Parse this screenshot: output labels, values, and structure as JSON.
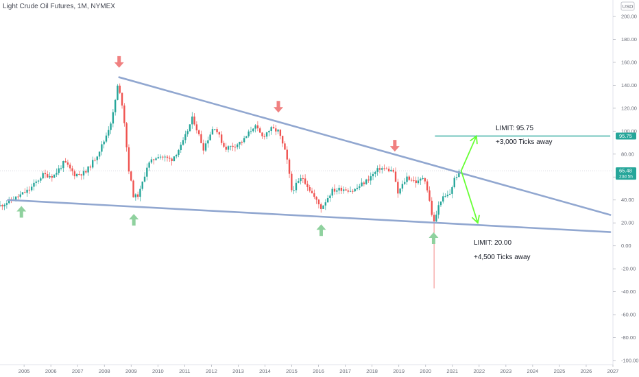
{
  "chart_title": "Light Crude Oil Futures, 1M, NYMEX",
  "currency_label": "USD",
  "price_tags": [
    {
      "value": 95.75,
      "label": "95.75",
      "sub": "",
      "color": "#26a69a"
    },
    {
      "value": 65.48,
      "label": "65.48",
      "sub": "23d 5h",
      "color": "#26a69a"
    }
  ],
  "annotations": [
    {
      "id": "upper",
      "title": "LIMIT: 95.75",
      "sub": "+3,000 Ticks away"
    },
    {
      "id": "lower",
      "title": "LIMIT: 20.00",
      "sub": "+4,500 Ticks away"
    }
  ],
  "colors": {
    "up": "#26a69a",
    "down": "#ef5350",
    "trendline": "#91a7d0",
    "limit_line": "#26a69a",
    "projection": "#66ff33",
    "arrow_up": "#8fd19e",
    "arrow_down": "#f08080"
  },
  "chart_data": {
    "type": "candlestick",
    "title": "Light Crude Oil Futures, 1M, NYMEX",
    "xlim": [
      2004.1,
      2027.0
    ],
    "ylim": [
      -100,
      200
    ],
    "x_ticks": [
      "2005",
      "2006",
      "2007",
      "2008",
      "2009",
      "2010",
      "2011",
      "2012",
      "2013",
      "2014",
      "2015",
      "2016",
      "2017",
      "2018",
      "2019",
      "2020",
      "2021",
      "2022",
      "2023",
      "2024",
      "2025",
      "2026",
      "2027"
    ],
    "y_ticks": [
      200,
      180,
      160,
      140,
      120,
      100,
      80,
      60,
      40,
      20,
      0,
      -20,
      -40,
      -60,
      -80,
      -100
    ],
    "y_tick_labels": [
      "200.00",
      "180.00",
      "160.00",
      "140.00",
      "120.00",
      "100.00",
      "80.00",
      "60.00",
      "40.00",
      "20.00",
      "0.00",
      "-20.00",
      "-40.00",
      "-60.00",
      "-80.00",
      "-100.00"
    ],
    "price_path": [
      [
        2004.1,
        35
      ],
      [
        2004.7,
        42
      ],
      [
        2005.2,
        49
      ],
      [
        2005.7,
        62
      ],
      [
        2006.1,
        61
      ],
      [
        2006.5,
        73
      ],
      [
        2006.9,
        62
      ],
      [
        2007.3,
        64
      ],
      [
        2007.7,
        78
      ],
      [
        2008.0,
        92
      ],
      [
        2008.3,
        112
      ],
      [
        2008.5,
        140
      ],
      [
        2008.7,
        120
      ],
      [
        2008.9,
        68
      ],
      [
        2009.1,
        42
      ],
      [
        2009.3,
        45
      ],
      [
        2009.6,
        70
      ],
      [
        2010.0,
        79
      ],
      [
        2010.5,
        75
      ],
      [
        2010.9,
        88
      ],
      [
        2011.3,
        112
      ],
      [
        2011.7,
        85
      ],
      [
        2012.1,
        105
      ],
      [
        2012.5,
        85
      ],
      [
        2012.9,
        88
      ],
      [
        2013.2,
        92
      ],
      [
        2013.6,
        105
      ],
      [
        2013.9,
        95
      ],
      [
        2014.2,
        102
      ],
      [
        2014.5,
        100
      ],
      [
        2014.8,
        78
      ],
      [
        2015.0,
        48
      ],
      [
        2015.4,
        60
      ],
      [
        2015.9,
        40
      ],
      [
        2016.1,
        33
      ],
      [
        2016.5,
        48
      ],
      [
        2016.9,
        50
      ],
      [
        2017.3,
        48
      ],
      [
        2017.8,
        57
      ],
      [
        2018.3,
        68
      ],
      [
        2018.8,
        65
      ],
      [
        2018.95,
        45
      ],
      [
        2019.3,
        60
      ],
      [
        2019.7,
        55
      ],
      [
        2019.95,
        61
      ],
      [
        2020.1,
        45
      ],
      [
        2020.3,
        19
      ],
      [
        2020.55,
        40
      ],
      [
        2020.9,
        45
      ],
      [
        2021.1,
        60
      ],
      [
        2021.33,
        65.48
      ]
    ],
    "candle_count": 205,
    "spike_low": {
      "x": 2020.3,
      "value": -37
    },
    "trendlines": [
      {
        "name": "upper-trendline",
        "from": [
          2008.55,
          147
        ],
        "to": [
          2026.9,
          27
        ]
      },
      {
        "name": "lower-trendline",
        "from": [
          2004.4,
          40
        ],
        "to": [
          2026.9,
          12
        ]
      }
    ],
    "horizontal_lines": [
      {
        "name": "limit-line",
        "value": 95.75,
        "from_x": 2020.35,
        "to_x": 2026.9
      },
      {
        "name": "current-price-line",
        "value": 65.48,
        "from_x": 2004.1,
        "to_x": 2027.0
      }
    ],
    "projections": [
      {
        "name": "projection-up",
        "from": [
          2021.33,
          65.48
        ],
        "to": [
          2021.9,
          95.75
        ]
      },
      {
        "name": "projection-down",
        "from": [
          2021.33,
          65.48
        ],
        "to": [
          2021.95,
          20
        ]
      }
    ],
    "markers": [
      {
        "type": "down",
        "x": 2008.55,
        "value": 160
      },
      {
        "type": "down",
        "x": 2014.5,
        "value": 121
      },
      {
        "type": "down",
        "x": 2018.85,
        "value": 87
      },
      {
        "type": "up",
        "x": 2004.9,
        "value": 30
      },
      {
        "type": "up",
        "x": 2009.1,
        "value": 23
      },
      {
        "type": "up",
        "x": 2016.1,
        "value": 14
      },
      {
        "type": "up",
        "x": 2020.3,
        "value": 7
      }
    ]
  }
}
